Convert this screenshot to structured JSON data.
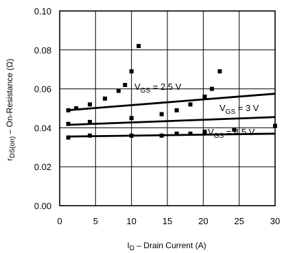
{
  "chart_data": {
    "type": "scatter",
    "xlabel": "I",
    "xlabel_sub": "D",
    "xlabel_rest": " – Drain Current (A)",
    "ylabel": "r",
    "ylabel_sub": "DS(on)",
    "ylabel_rest": " – On-Resistance (Ω)",
    "xlim": [
      0,
      30
    ],
    "ylim": [
      0,
      0.1
    ],
    "x_ticks": [
      "0",
      "5",
      "10",
      "15",
      "20",
      "25",
      "30"
    ],
    "y_ticks": [
      "0.00",
      "0.02",
      "0.04",
      "0.06",
      "0.08",
      "0.10"
    ],
    "grid": true,
    "series": [
      {
        "label_main": "V",
        "label_sub": "GS",
        "label_rest": " = 2.5 V",
        "fit_line": {
          "x": [
            1,
            30
          ],
          "y": [
            0.049,
            0.0575
          ]
        },
        "points": [
          {
            "x": 1.2,
            "y": 0.049
          },
          {
            "x": 2.3,
            "y": 0.05
          },
          {
            "x": 4.2,
            "y": 0.052
          },
          {
            "x": 6.3,
            "y": 0.055
          },
          {
            "x": 8.2,
            "y": 0.059
          },
          {
            "x": 9.1,
            "y": 0.062
          },
          {
            "x": 10.0,
            "y": 0.069
          },
          {
            "x": 11.0,
            "y": 0.082
          },
          {
            "x": 14.2,
            "y": 0.047
          },
          {
            "x": 16.3,
            "y": 0.049
          },
          {
            "x": 18.2,
            "y": 0.052
          },
          {
            "x": 20.2,
            "y": 0.056
          },
          {
            "x": 21.2,
            "y": 0.06
          },
          {
            "x": 22.3,
            "y": 0.069
          }
        ]
      },
      {
        "label_main": "V",
        "label_sub": "GS",
        "label_rest": " = 3 V",
        "fit_line": {
          "x": [
            1,
            30
          ],
          "y": [
            0.0415,
            0.0455
          ]
        },
        "points": [
          {
            "x": 1.2,
            "y": 0.042
          },
          {
            "x": 4.2,
            "y": 0.043
          },
          {
            "x": 10.0,
            "y": 0.045
          },
          {
            "x": 24.3,
            "y": 0.039
          },
          {
            "x": 30.2,
            "y": 0.041
          }
        ]
      },
      {
        "label_main": "V",
        "label_sub": "GS",
        "label_rest": " = 4.5 V",
        "fit_line": {
          "x": [
            1,
            30
          ],
          "y": [
            0.0355,
            0.037
          ]
        },
        "points": [
          {
            "x": 1.2,
            "y": 0.035
          },
          {
            "x": 4.2,
            "y": 0.036
          },
          {
            "x": 10.0,
            "y": 0.036
          },
          {
            "x": 14.2,
            "y": 0.036
          },
          {
            "x": 16.3,
            "y": 0.037
          },
          {
            "x": 18.2,
            "y": 0.037
          },
          {
            "x": 20.2,
            "y": 0.038
          }
        ]
      }
    ]
  }
}
